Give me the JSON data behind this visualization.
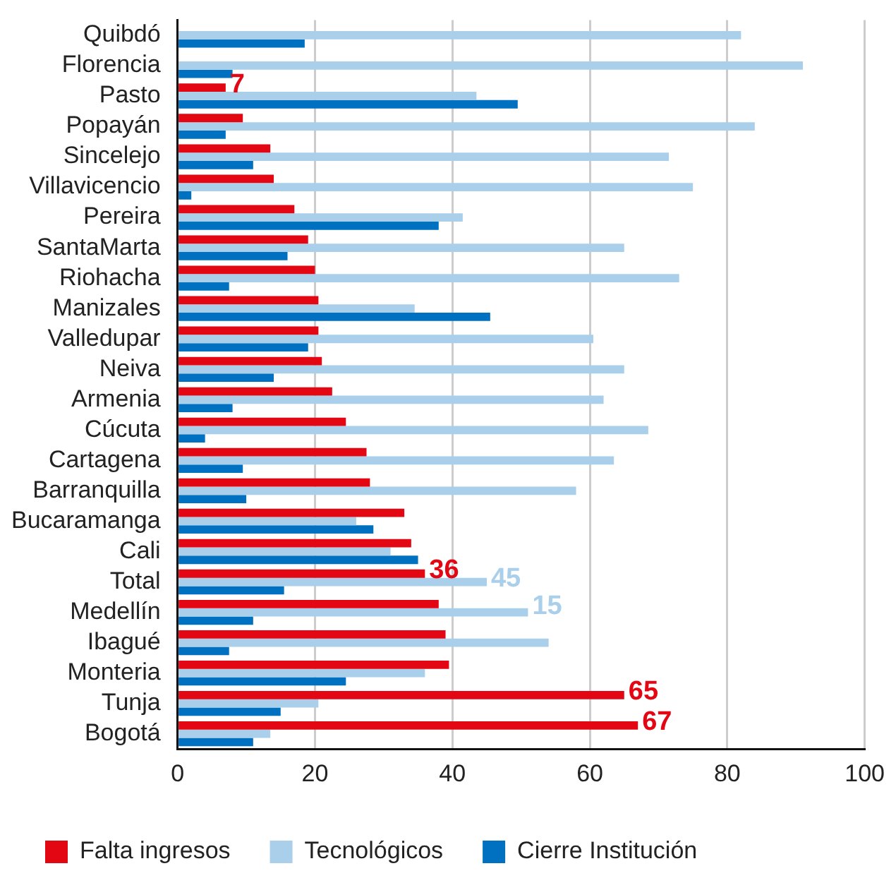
{
  "chart_data": {
    "type": "bar",
    "orientation": "horizontal",
    "categories": [
      "Quibdó",
      "Florencia",
      "Pasto",
      "Popayán",
      "Sincelejo",
      "Villavicencio",
      "Pereira",
      "SantaMarta",
      "Riohacha",
      "Manizales",
      "Valledupar",
      "Neiva",
      "Armenia",
      "Cúcuta",
      "Cartagena",
      "Barranquilla",
      "Bucaramanga",
      "Cali",
      "Total",
      "Medellín",
      "Ibagué",
      "Monteria",
      "Tunja",
      "Bogotá"
    ],
    "series": [
      {
        "name": "Falta ingresos",
        "color": "#e30613",
        "values": [
          null,
          null,
          7,
          9.5,
          13.5,
          14,
          17,
          19,
          20,
          20.5,
          20.5,
          21,
          22.5,
          24.5,
          27.5,
          28,
          33,
          34,
          36,
          38,
          39,
          39.5,
          65,
          67
        ],
        "value_labels": [
          null,
          null,
          "7",
          null,
          null,
          null,
          null,
          null,
          null,
          null,
          null,
          null,
          null,
          null,
          null,
          null,
          null,
          null,
          "36",
          null,
          null,
          null,
          "65",
          "67"
        ]
      },
      {
        "name": "Tecnológicos",
        "color": "#a9cfeb",
        "values": [
          82,
          91,
          43.5,
          84,
          71.5,
          75,
          41.5,
          65,
          73,
          34.5,
          60.5,
          65,
          62,
          68.5,
          63.5,
          58,
          26,
          31,
          45,
          51,
          54,
          36,
          20.5,
          13.5
        ],
        "value_labels": [
          null,
          null,
          null,
          null,
          null,
          null,
          null,
          null,
          null,
          null,
          null,
          null,
          null,
          null,
          null,
          null,
          null,
          null,
          "45",
          null,
          null,
          null,
          null,
          null
        ]
      },
      {
        "name": "Cierre Institución",
        "color": "#0070c0",
        "values": [
          18.5,
          8,
          49.5,
          7,
          11,
          2,
          38,
          16,
          7.5,
          45.5,
          19,
          14,
          8,
          4,
          9.5,
          10,
          28.5,
          35,
          15.5,
          11,
          7.5,
          24.5,
          15,
          11
        ]
      }
    ],
    "xlim": [
      0,
      100
    ],
    "xticks": [
      0,
      20,
      40,
      60,
      80,
      100
    ],
    "grid": "x",
    "legend": "bottom",
    "annotations": [
      {
        "text": "15",
        "x": 51,
        "y": "Medellín"
      }
    ]
  }
}
